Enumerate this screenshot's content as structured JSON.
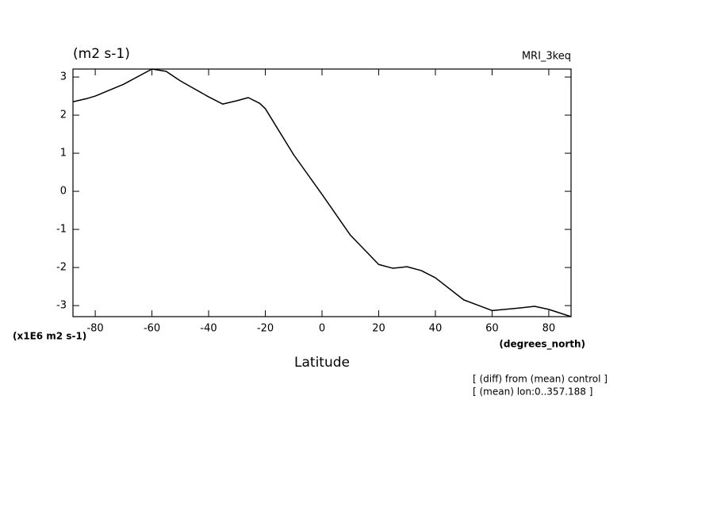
{
  "chart_data": {
    "type": "line",
    "title": "(m2 s-1)",
    "subtitle": "MRI_3keq",
    "y_scale_label": "(x1E6 m2 s-1)",
    "x_unit_label": "(degrees_north)",
    "x_label": "Latitude",
    "annotations": [
      "[ (diff) from (mean) control ]",
      "[ (mean) lon:0..357.188 ]"
    ],
    "x": [
      -87.86,
      -82.7,
      -80,
      -70,
      -60,
      -55,
      -50,
      -40,
      -35,
      -30,
      -26,
      -22,
      -20,
      -10,
      0,
      10,
      20,
      25,
      30,
      35,
      40,
      50,
      60,
      70,
      75,
      80,
      87.86
    ],
    "series": [
      {
        "color": "#000000",
        "values": [
          2.35,
          2.44,
          2.5,
          2.81,
          3.21,
          3.15,
          2.9,
          2.48,
          2.29,
          2.38,
          2.46,
          2.31,
          2.17,
          0.96,
          -0.08,
          -1.15,
          -1.92,
          -2.02,
          -1.98,
          -2.08,
          -2.27,
          -2.85,
          -3.13,
          -3.06,
          -3.02,
          -3.1,
          -3.29
        ]
      }
    ],
    "xlim": [
      -87.86,
      87.86
    ],
    "ylim": [
      -3.29,
      3.21
    ],
    "xticks": [
      -80,
      -60,
      -40,
      -20,
      0,
      20,
      40,
      60,
      80
    ],
    "yticks": [
      -3,
      -2,
      -1,
      0,
      1,
      2,
      3
    ],
    "grid": false
  }
}
